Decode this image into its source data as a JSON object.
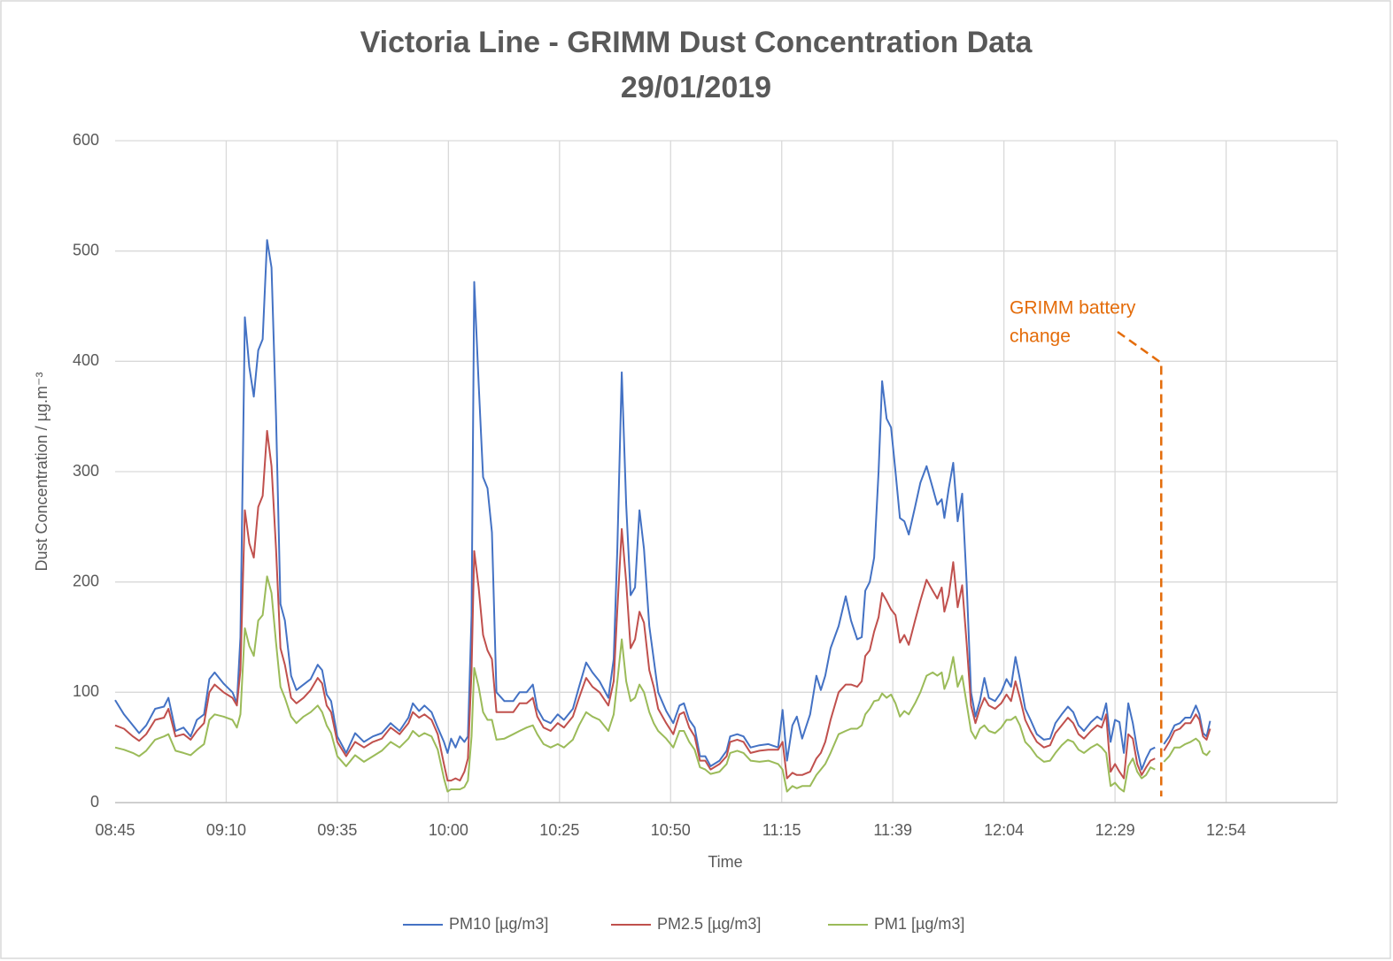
{
  "chart_data": {
    "type": "line",
    "title": "Victoria Line  - GRIMM Dust Concentration Data",
    "subtitle": "29/01/2019",
    "x_label": "Time",
    "y_label": "Dust Concentration / µg.m⁻³",
    "xlim": [
      0,
      275
    ],
    "xticks": [
      {
        "value": 0,
        "label": "08:45"
      },
      {
        "value": 25,
        "label": "09:10"
      },
      {
        "value": 50,
        "label": "09:35"
      },
      {
        "value": 75,
        "label": "10:00"
      },
      {
        "value": 100,
        "label": "10:25"
      },
      {
        "value": 125,
        "label": "10:50"
      },
      {
        "value": 150,
        "label": "11:15"
      },
      {
        "value": 175,
        "label": "11:39"
      },
      {
        "value": 200,
        "label": "12:04"
      },
      {
        "value": 225,
        "label": "12:29"
      },
      {
        "value": 250,
        "label": "12:54"
      }
    ],
    "ylim": [
      0,
      600
    ],
    "yticks": [
      0,
      100,
      200,
      300,
      400,
      500,
      600
    ],
    "grid": true,
    "legend": "bottom",
    "annotation": {
      "lines": [
        "GRIMM battery",
        "change"
      ],
      "x": 235.4,
      "color": "#e46c0a"
    },
    "x": [
      0,
      2,
      4,
      5.4,
      7,
      9,
      11,
      12,
      13.6,
      15.4,
      17,
      18.4,
      20,
      21.2,
      22.4,
      24.4,
      26.4,
      27.4,
      28.2,
      29.2,
      30.2,
      31.2,
      32.2,
      33.2,
      34.2,
      35.2,
      36.2,
      37.2,
      38.2,
      39.6,
      40.8,
      42.4,
      44,
      45.6,
      46.6,
      47.6,
      48.6,
      50,
      52,
      54,
      56,
      58,
      60,
      62,
      64,
      66,
      67,
      68.4,
      69.6,
      71.2,
      72.6,
      74,
      74.8,
      75.6,
      76.6,
      77.6,
      78.6,
      79.4,
      80.2,
      80.8,
      81.8,
      82.8,
      83.8,
      84.8,
      85.8,
      87.6,
      89.6,
      91,
      92.6,
      94,
      95,
      96.4,
      98,
      99.6,
      101,
      103,
      104.4,
      106,
      107.4,
      109,
      111,
      112.2,
      113,
      114,
      115,
      116,
      117,
      118,
      119,
      120.2,
      121.2,
      122.2,
      124,
      125.6,
      127,
      128,
      129.2,
      130.4,
      131.6,
      132.8,
      134,
      136,
      137.6,
      138.4,
      140,
      141.4,
      143,
      145,
      147,
      149.2,
      150.2,
      151.2,
      152.4,
      153.4,
      154.6,
      156.4,
      157.8,
      158.8,
      159.8,
      161,
      162.8,
      164.4,
      165.6,
      167,
      168,
      168.8,
      169.8,
      170.8,
      171.8,
      172.6,
      173.6,
      174.6,
      175.6,
      176.6,
      177.6,
      178.6,
      180,
      181.2,
      182.6,
      184,
      185,
      186,
      186.6,
      187.6,
      188.6,
      189.6,
      190.6,
      191.6,
      192.6,
      193.6,
      194.6,
      195.6,
      196.6,
      198,
      199.4,
      200.6,
      201.6,
      202.6,
      203.6,
      204.8,
      206,
      207.4,
      209,
      210.4,
      211.6,
      213,
      214.4,
      215.6,
      216.8,
      218,
      219.6,
      221,
      222,
      223,
      224,
      225,
      226,
      227,
      228,
      229,
      230,
      231,
      232,
      233,
      234,
      235,
      236,
      237.2,
      238.4,
      239.6,
      240.8,
      242,
      243.2,
      244,
      244.8,
      245.6,
      246.4
    ],
    "series": [
      {
        "name": "PM10 [µg/m3]",
        "color": "#4472c4",
        "values": [
          93,
          80,
          70,
          63,
          70,
          85,
          87,
          95,
          65,
          68,
          60,
          75,
          80,
          112,
          118,
          108,
          100,
          90,
          150,
          440,
          395,
          368,
          410,
          420,
          510,
          485,
          350,
          180,
          165,
          115,
          102,
          107,
          112,
          125,
          120,
          98,
          92,
          60,
          45,
          63,
          55,
          60,
          63,
          72,
          65,
          77,
          90,
          83,
          88,
          82,
          68,
          55,
          45,
          58,
          50,
          60,
          55,
          60,
          170,
          472,
          380,
          295,
          285,
          245,
          100,
          92,
          92,
          100,
          100,
          107,
          85,
          75,
          72,
          80,
          75,
          85,
          105,
          127,
          118,
          110,
          95,
          130,
          230,
          390,
          270,
          188,
          195,
          265,
          230,
          160,
          130,
          100,
          83,
          72,
          88,
          90,
          75,
          68,
          42,
          42,
          33,
          38,
          47,
          60,
          62,
          60,
          50,
          52,
          53,
          50,
          84,
          38,
          70,
          78,
          58,
          80,
          115,
          102,
          115,
          140,
          160,
          187,
          165,
          148,
          150,
          192,
          200,
          222,
          300,
          382,
          348,
          340,
          300,
          258,
          255,
          243,
          268,
          290,
          305,
          285,
          270,
          275,
          258,
          285,
          308,
          255,
          280,
          200,
          100,
          78,
          92,
          113,
          95,
          92,
          100,
          112,
          105,
          132,
          112,
          85,
          75,
          62,
          57,
          58,
          72,
          80,
          87,
          82,
          70,
          65,
          73,
          78,
          75,
          90,
          55,
          75,
          73,
          45,
          90,
          72,
          48,
          30,
          40,
          48,
          50,
          null,
          53,
          60,
          70,
          72,
          77,
          77,
          88,
          80,
          63,
          60,
          74
        ]
      },
      {
        "name": "PM2.5 [µg/m3]",
        "color": "#c0504d",
        "values": [
          70,
          67,
          60,
          56,
          62,
          75,
          77,
          85,
          60,
          62,
          57,
          65,
          72,
          100,
          107,
          100,
          95,
          88,
          120,
          265,
          235,
          222,
          268,
          278,
          337,
          305,
          230,
          140,
          125,
          95,
          90,
          95,
          102,
          113,
          108,
          88,
          82,
          55,
          42,
          55,
          50,
          55,
          58,
          68,
          62,
          72,
          82,
          77,
          80,
          75,
          62,
          35,
          20,
          20,
          22,
          20,
          28,
          40,
          120,
          228,
          195,
          152,
          138,
          130,
          82,
          82,
          82,
          90,
          90,
          95,
          78,
          68,
          65,
          72,
          68,
          78,
          95,
          113,
          105,
          100,
          88,
          110,
          175,
          248,
          200,
          140,
          148,
          173,
          163,
          120,
          105,
          85,
          72,
          62,
          80,
          82,
          68,
          60,
          38,
          38,
          30,
          35,
          42,
          55,
          57,
          55,
          45,
          47,
          48,
          48,
          55,
          22,
          27,
          25,
          25,
          28,
          40,
          45,
          55,
          75,
          100,
          107,
          107,
          105,
          110,
          133,
          138,
          155,
          168,
          190,
          183,
          175,
          170,
          145,
          152,
          143,
          165,
          183,
          202,
          192,
          185,
          195,
          173,
          188,
          218,
          177,
          197,
          145,
          88,
          72,
          85,
          95,
          88,
          85,
          90,
          98,
          92,
          110,
          95,
          75,
          65,
          55,
          50,
          52,
          63,
          70,
          77,
          72,
          62,
          58,
          65,
          70,
          68,
          80,
          28,
          35,
          28,
          22,
          62,
          58,
          35,
          25,
          32,
          38,
          40,
          null,
          47,
          55,
          65,
          67,
          72,
          72,
          80,
          75,
          60,
          57,
          67
        ]
      },
      {
        "name": "PM1 [µg/m3]",
        "color": "#9bbb59",
        "values": [
          50,
          48,
          45,
          42,
          47,
          57,
          60,
          62,
          47,
          45,
          43,
          48,
          53,
          75,
          80,
          78,
          75,
          68,
          80,
          158,
          142,
          133,
          165,
          170,
          205,
          190,
          145,
          105,
          95,
          78,
          72,
          78,
          82,
          88,
          82,
          70,
          63,
          42,
          33,
          43,
          37,
          42,
          47,
          55,
          50,
          58,
          65,
          60,
          63,
          60,
          48,
          22,
          10,
          12,
          12,
          12,
          14,
          20,
          60,
          122,
          105,
          82,
          75,
          75,
          57,
          58,
          62,
          65,
          68,
          70,
          62,
          53,
          50,
          53,
          50,
          57,
          70,
          82,
          78,
          75,
          65,
          80,
          110,
          148,
          110,
          92,
          95,
          107,
          100,
          82,
          72,
          65,
          58,
          50,
          65,
          65,
          55,
          48,
          32,
          30,
          26,
          28,
          35,
          45,
          47,
          45,
          38,
          37,
          38,
          35,
          30,
          10,
          15,
          13,
          15,
          15,
          25,
          30,
          35,
          45,
          62,
          65,
          67,
          67,
          70,
          80,
          85,
          92,
          93,
          99,
          95,
          98,
          90,
          78,
          83,
          80,
          90,
          100,
          115,
          118,
          115,
          118,
          103,
          113,
          132,
          105,
          115,
          90,
          65,
          58,
          67,
          70,
          65,
          63,
          68,
          75,
          75,
          78,
          70,
          55,
          50,
          42,
          37,
          38,
          45,
          52,
          57,
          55,
          48,
          45,
          50,
          53,
          50,
          45,
          15,
          18,
          13,
          10,
          33,
          40,
          28,
          22,
          25,
          32,
          30,
          null,
          37,
          42,
          50,
          50,
          53,
          55,
          58,
          55,
          45,
          43,
          47
        ]
      }
    ]
  }
}
